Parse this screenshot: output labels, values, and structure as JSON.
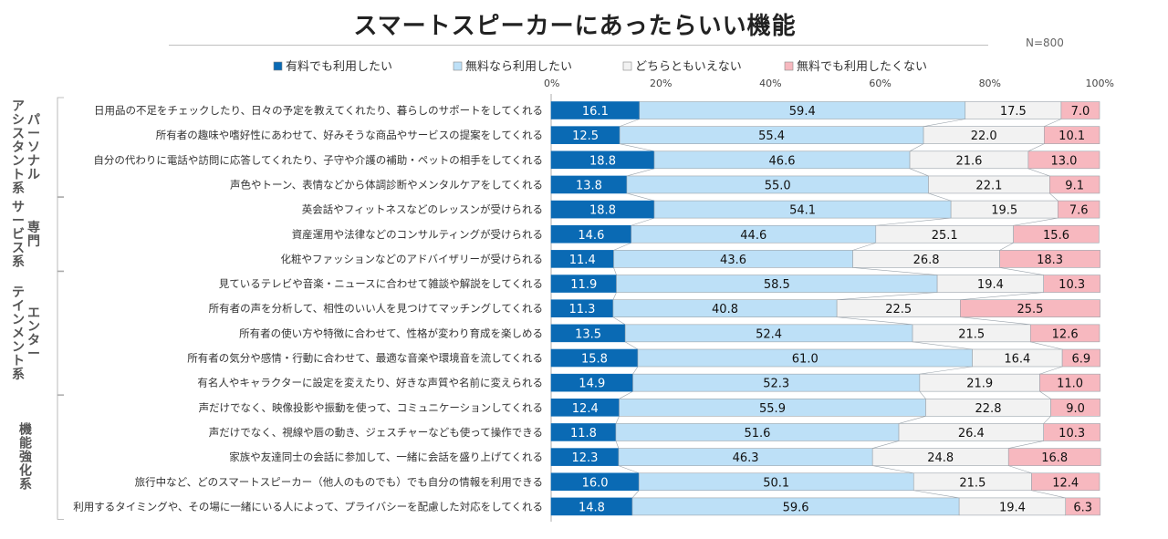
{
  "chart_data": {
    "type": "bar",
    "orientation": "horizontal",
    "stacked": "percent",
    "title": "スマートスピーカーにあったらいい機能",
    "note": "N=800",
    "xlim": [
      0,
      100
    ],
    "ticks": [
      "0%",
      "20%",
      "40%",
      "60%",
      "80%",
      "100%"
    ],
    "legend_position": "top",
    "series": [
      {
        "name": "有料でも利用したい",
        "color": "#0a6ab4",
        "values": [
          16.1,
          12.5,
          18.8,
          13.8,
          18.8,
          14.6,
          11.4,
          11.9,
          11.3,
          13.5,
          15.8,
          14.9,
          12.4,
          11.8,
          12.3,
          16.0,
          14.8
        ]
      },
      {
        "name": "無料なら利用したい",
        "color": "#bde0f7",
        "values": [
          59.4,
          55.4,
          46.6,
          55.0,
          54.1,
          44.6,
          43.6,
          58.5,
          40.8,
          52.4,
          61.0,
          52.3,
          55.9,
          51.6,
          46.3,
          50.1,
          59.6
        ]
      },
      {
        "name": "どちらともいえない",
        "color": "#f2f2f2",
        "values": [
          17.5,
          22.0,
          21.6,
          22.1,
          19.5,
          25.1,
          26.8,
          19.4,
          22.5,
          21.5,
          16.4,
          21.9,
          22.8,
          26.4,
          24.8,
          21.5,
          19.4
        ]
      },
      {
        "name": "無料でも利用したくない",
        "color": "#f7b8bf",
        "values": [
          7.0,
          10.1,
          13.0,
          9.1,
          7.6,
          15.6,
          18.3,
          10.3,
          25.5,
          12.6,
          6.9,
          11.0,
          9.0,
          10.3,
          16.8,
          12.4,
          6.3
        ]
      }
    ],
    "categories": [
      "日用品の不足をチェックしたり、日々の予定を教えてくれたり、暮らしのサポートをしてくれる",
      "所有者の趣味や嗜好性にあわせて、好みそうな商品やサービスの提案をしてくれる",
      "自分の代わりに電話や訪問に応答してくれたり、子守や介護の補助・ペットの相手をしてくれる",
      "声色やトーン、表情などから体調診断やメンタルケアをしてくれる",
      "英会話やフィットネスなどのレッスンが受けられる",
      "資産運用や法律などのコンサルティングが受けられる",
      "化粧やファッションなどのアドバイザリーが受けられる",
      "見ているテレビや音楽・ニュースに合わせて雑談や解説をしてくれる",
      "所有者の声を分析して、相性のいい人を見つけてマッチングしてくれる",
      "所有者の使い方や特徴に合わせて、性格が変わり育成を楽しめる",
      "所有者の気分や感情・行動に合わせて、最適な音楽や環境音を流してくれる",
      "有名人やキャラクターに設定を変えたり、好きな声質や名前に変えられる",
      "声だけでなく、映像投影や振動を使って、コミュニケーションしてくれる",
      "声だけでなく、視線や唇の動き、ジェスチャーなども使って操作できる",
      "家族や友達同士の会話に参加して、一緒に会話を盛り上げてくれる",
      "旅行中など、どのスマートスピーカー（他人のものでも）でも自分の情報を利用できる",
      "利用するタイミングや、その場に一緒にいる人によって、プライバシーを配慮した対応をしてくれる"
    ],
    "groups": [
      {
        "label": "パーソナルアシスタント系",
        "columns": [
          "パーソナル",
          "アシスタント系"
        ],
        "rows": [
          0,
          3
        ]
      },
      {
        "label": "専門サービス系",
        "columns": [
          "専門",
          "サービス系"
        ],
        "rows": [
          4,
          6
        ]
      },
      {
        "label": "エンターテインメント系",
        "columns": [
          "エンター",
          "テインメント系"
        ],
        "rows": [
          7,
          11
        ]
      },
      {
        "label": "機能強化系",
        "columns": [
          "機能強化系"
        ],
        "rows": [
          12,
          16
        ]
      }
    ]
  }
}
